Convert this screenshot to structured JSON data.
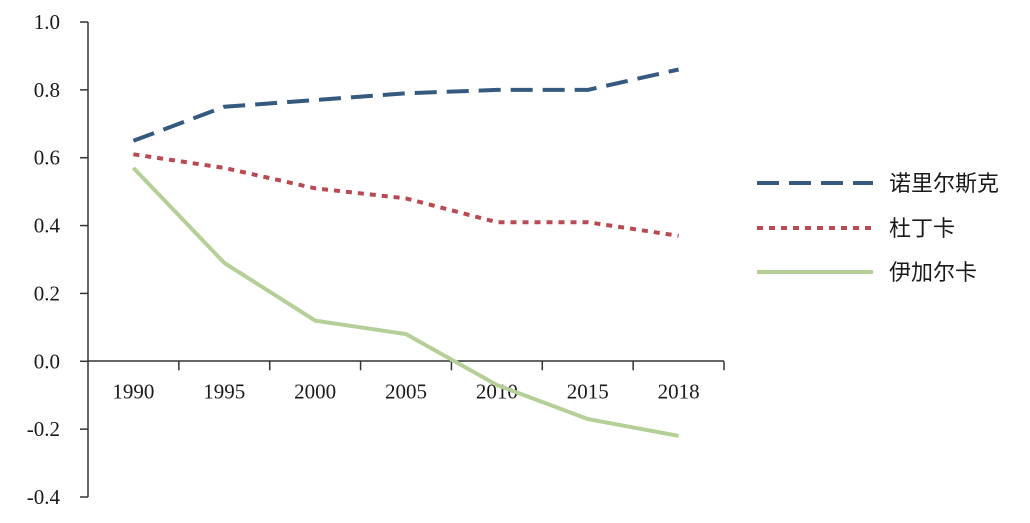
{
  "chart_data": {
    "type": "line",
    "title": "",
    "xlabel": "",
    "ylabel": "",
    "categories": [
      "1990",
      "1995",
      "2000",
      "2005",
      "2010",
      "2015",
      "2018"
    ],
    "x": [
      1990,
      1995,
      2000,
      2005,
      2010,
      2015,
      2018
    ],
    "ylim": [
      -0.4,
      1.0
    ],
    "y_ticks": [
      "1.0",
      "0.8",
      "0.6",
      "0.4",
      "0.2",
      "0.0",
      "-0.2",
      "-0.4"
    ],
    "y_tick_values": [
      1.0,
      0.8,
      0.6,
      0.4,
      0.2,
      0.0,
      -0.2,
      -0.4
    ],
    "grid": false,
    "legend_position": "right",
    "series": [
      {
        "name": "诺里尔斯克",
        "color": "#36597f",
        "style": "dashed",
        "values": [
          0.65,
          0.75,
          0.77,
          0.79,
          0.8,
          0.8,
          0.86
        ]
      },
      {
        "name": "杜丁卡",
        "color": "#b94a52",
        "style": "dotted",
        "values": [
          0.61,
          0.57,
          0.51,
          0.48,
          0.41,
          0.41,
          0.37
        ]
      },
      {
        "name": "伊加尔卡",
        "color": "#b5cf98",
        "style": "solid",
        "values": [
          0.57,
          0.29,
          0.12,
          0.08,
          -0.07,
          -0.17,
          -0.22
        ]
      }
    ]
  }
}
